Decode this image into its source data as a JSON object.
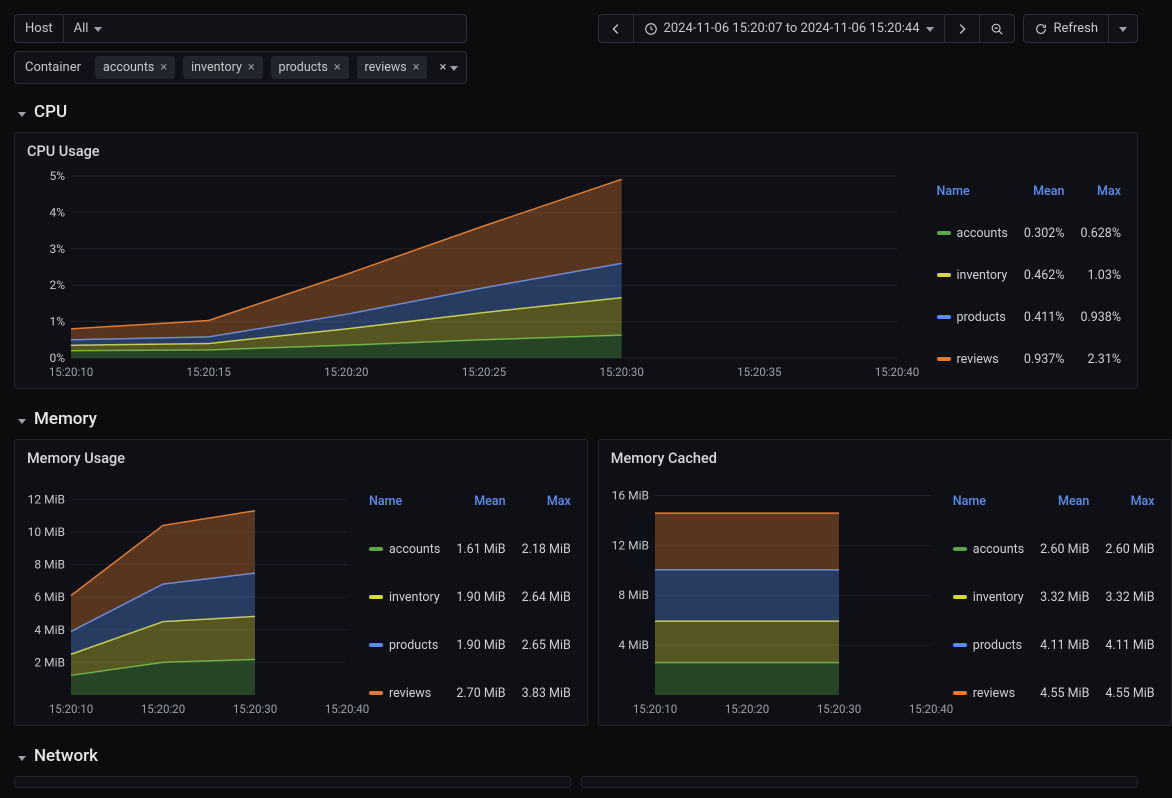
{
  "toolbar": {
    "host_label": "Host",
    "host_value": "All",
    "container_label": "Container",
    "tags": [
      "accounts",
      "inventory",
      "products",
      "reviews"
    ],
    "time_range": "2024-11-06 15:20:07 to 2024-11-06 15:20:44",
    "refresh_label": "Refresh"
  },
  "series_colors": {
    "accounts": "#5aa64a",
    "inventory": "#d9d93c",
    "products": "#5a8dee",
    "reviews": "#e07b33"
  },
  "sections": {
    "cpu_title": "CPU",
    "memory_title": "Memory",
    "network_title": "Network"
  },
  "cpu_usage": {
    "title": "CPU Usage",
    "type": "stacked-area",
    "x_labels": [
      "15:20:10",
      "15:20:15",
      "15:20:20",
      "15:20:25",
      "15:20:30",
      "15:20:35",
      "15:20:40"
    ],
    "x_data_end_index": 4,
    "y_ticks": [
      0,
      1,
      2,
      3,
      4,
      5
    ],
    "y_unit": "%",
    "ylim": [
      0,
      5
    ],
    "stack_order": [
      "accounts",
      "inventory",
      "products",
      "reviews"
    ],
    "values": {
      "accounts": [
        0.2,
        0.22,
        0.35,
        0.5,
        0.63
      ],
      "inventory": [
        0.15,
        0.18,
        0.45,
        0.75,
        1.03
      ],
      "products": [
        0.15,
        0.18,
        0.4,
        0.68,
        0.94
      ],
      "reviews": [
        0.3,
        0.45,
        1.1,
        1.7,
        2.31
      ]
    },
    "legend": {
      "headers": [
        "Name",
        "Mean",
        "Max"
      ],
      "rows": [
        {
          "name": "accounts",
          "mean": "0.302%",
          "max": "0.628%"
        },
        {
          "name": "inventory",
          "mean": "0.462%",
          "max": "1.03%"
        },
        {
          "name": "products",
          "mean": "0.411%",
          "max": "0.938%"
        },
        {
          "name": "reviews",
          "mean": "0.937%",
          "max": "2.31%"
        }
      ]
    }
  },
  "mem_usage": {
    "title": "Memory Usage",
    "type": "stacked-area",
    "x_labels": [
      "15:20:10",
      "15:20:20",
      "15:20:30",
      "15:20:40"
    ],
    "x_data_end_index": 2,
    "y_ticks": [
      2,
      4,
      6,
      8,
      10,
      12
    ],
    "y_unit": " MiB",
    "ylim": [
      0,
      13
    ],
    "stack_order": [
      "accounts",
      "inventory",
      "products",
      "reviews"
    ],
    "values": {
      "accounts": [
        1.2,
        2.0,
        2.18
      ],
      "inventory": [
        1.3,
        2.5,
        2.64
      ],
      "products": [
        1.4,
        2.3,
        2.65
      ],
      "reviews": [
        2.2,
        3.6,
        3.83
      ]
    },
    "legend": {
      "headers": [
        "Name",
        "Mean",
        "Max"
      ],
      "rows": [
        {
          "name": "accounts",
          "mean": "1.61 MiB",
          "max": "2.18 MiB"
        },
        {
          "name": "inventory",
          "mean": "1.90 MiB",
          "max": "2.64 MiB"
        },
        {
          "name": "products",
          "mean": "1.90 MiB",
          "max": "2.65 MiB"
        },
        {
          "name": "reviews",
          "mean": "2.70 MiB",
          "max": "3.83 MiB"
        }
      ]
    }
  },
  "mem_cached": {
    "title": "Memory Cached",
    "type": "stacked-area",
    "x_labels": [
      "15:20:10",
      "15:20:20",
      "15:20:30",
      "15:20:40"
    ],
    "x_data_end_index": 2,
    "y_ticks": [
      4,
      8,
      12,
      16
    ],
    "y_unit": " MiB",
    "ylim": [
      0,
      17
    ],
    "stack_order": [
      "accounts",
      "inventory",
      "products",
      "reviews"
    ],
    "values": {
      "accounts": [
        2.6,
        2.6,
        2.6
      ],
      "inventory": [
        3.32,
        3.32,
        3.32
      ],
      "products": [
        4.11,
        4.11,
        4.11
      ],
      "reviews": [
        4.55,
        4.55,
        4.55
      ]
    },
    "legend": {
      "headers": [
        "Name",
        "Mean",
        "Max"
      ],
      "rows": [
        {
          "name": "accounts",
          "mean": "2.60 MiB",
          "max": "2.60 MiB"
        },
        {
          "name": "inventory",
          "mean": "3.32 MiB",
          "max": "3.32 MiB"
        },
        {
          "name": "products",
          "mean": "4.11 MiB",
          "max": "4.11 MiB"
        },
        {
          "name": "reviews",
          "mean": "4.55 MiB",
          "max": "4.55 MiB"
        }
      ]
    }
  },
  "chart_style": {
    "grid_color": "#1d2026",
    "axis_text_color": "#9da0a6",
    "fill_opacity": 0.35,
    "line_width": 1.5
  }
}
